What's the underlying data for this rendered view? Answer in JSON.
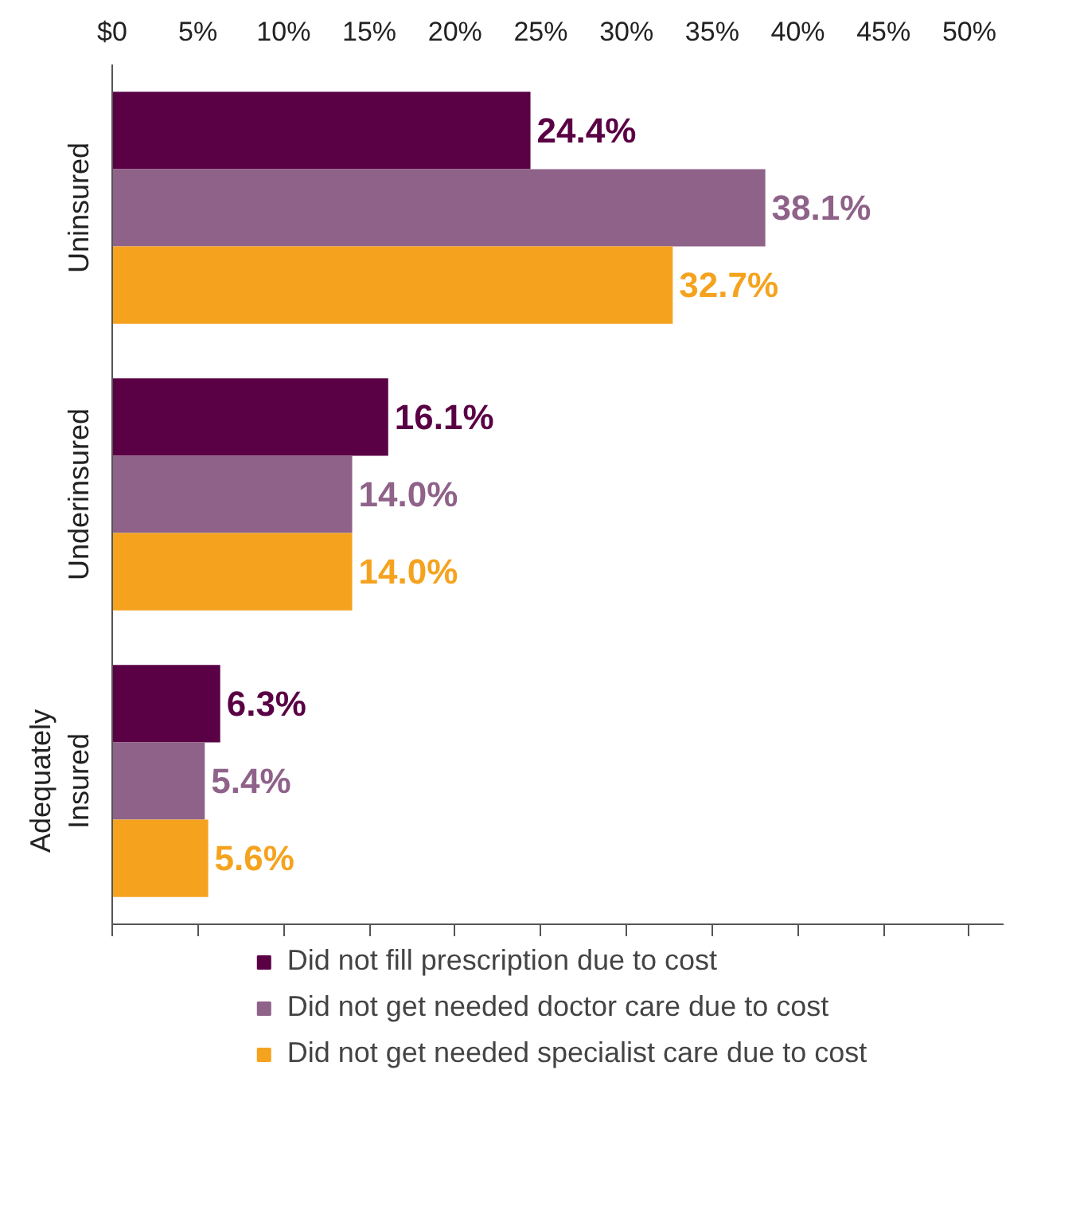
{
  "chart_data": {
    "type": "bar",
    "orientation": "horizontal",
    "categories": [
      "Uninsured",
      "Underinsured",
      "Adequately Insured"
    ],
    "series": [
      {
        "name": "Did not fill prescription due to cost",
        "color": "#5a0045",
        "values": [
          24.4,
          16.1,
          6.3
        ],
        "value_labels": [
          "24.4%",
          "16.1%",
          "6.3%"
        ]
      },
      {
        "name": "Did not get needed doctor care due to cost",
        "color": "#8f6289",
        "values": [
          38.1,
          14.0,
          5.4
        ],
        "value_labels": [
          "38.1%",
          "14.0%",
          "5.4%"
        ]
      },
      {
        "name": "Did not get needed specialist care due to cost",
        "color": "#f5a31f",
        "values": [
          32.7,
          14.0,
          5.6
        ],
        "value_labels": [
          "32.7%",
          "14.0%",
          "5.6%"
        ]
      }
    ],
    "xlim": [
      0,
      52
    ],
    "xticks": [
      {
        "value": 0,
        "label": "$0"
      },
      {
        "value": 5,
        "label": "5%"
      },
      {
        "value": 10,
        "label": "10%"
      },
      {
        "value": 15,
        "label": "15%"
      },
      {
        "value": 20,
        "label": "20%"
      },
      {
        "value": 25,
        "label": "25%"
      },
      {
        "value": 30,
        "label": "30%"
      },
      {
        "value": 35,
        "label": "35%"
      },
      {
        "value": 40,
        "label": "40%"
      },
      {
        "value": 45,
        "label": "45%"
      },
      {
        "value": 50,
        "label": "50%"
      }
    ],
    "grid": false,
    "legend": "bottom"
  }
}
